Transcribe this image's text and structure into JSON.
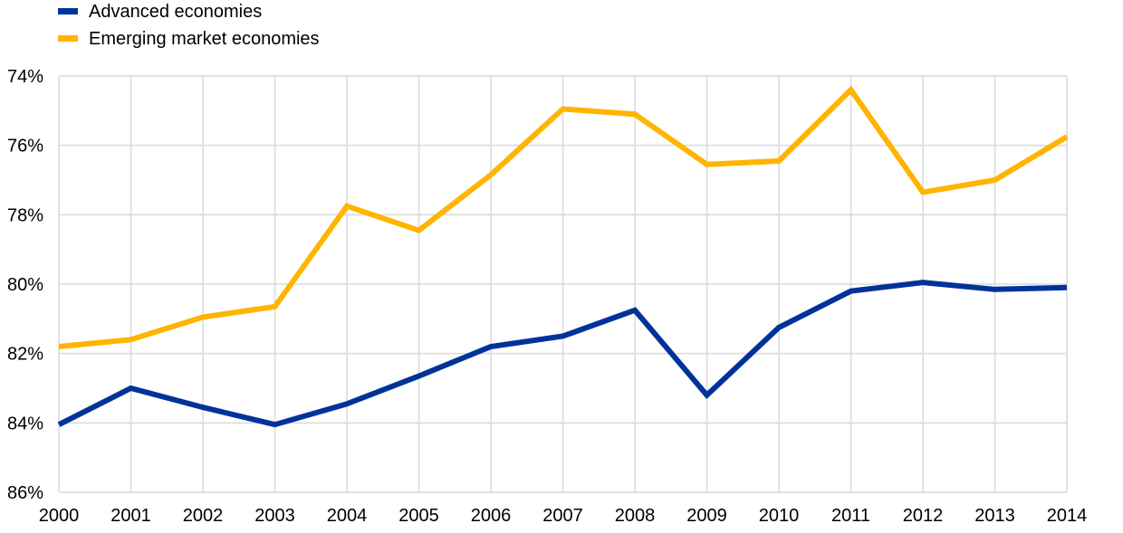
{
  "chart_data": {
    "type": "line",
    "title": "",
    "xlabel": "",
    "ylabel": "",
    "x": [
      "2000",
      "2001",
      "2002",
      "2003",
      "2004",
      "2005",
      "2006",
      "2007",
      "2008",
      "2009",
      "2010",
      "2011",
      "2012",
      "2013",
      "2014"
    ],
    "y_ticks": [
      {
        "value": 74,
        "label": "74%"
      },
      {
        "value": 76,
        "label": "76%"
      },
      {
        "value": 78,
        "label": "78%"
      },
      {
        "value": 80,
        "label": "80%"
      },
      {
        "value": 82,
        "label": "82%"
      },
      {
        "value": 84,
        "label": "84%"
      },
      {
        "value": 86,
        "label": "86%"
      }
    ],
    "ylim": [
      74,
      86
    ],
    "y_inverted": true,
    "grid": true,
    "legend_position": "top-left",
    "series": [
      {
        "name": "Advanced economies",
        "color": "#003399",
        "values": [
          84.05,
          83.0,
          83.55,
          84.05,
          83.45,
          82.65,
          81.8,
          81.5,
          80.75,
          83.2,
          81.25,
          80.2,
          79.95,
          80.15,
          80.1
        ]
      },
      {
        "name": "Emerging market economies",
        "color": "#FFB400",
        "values": [
          81.8,
          81.6,
          80.95,
          80.65,
          77.75,
          78.45,
          76.85,
          74.95,
          75.1,
          76.55,
          76.45,
          74.4,
          77.35,
          77.0,
          75.75
        ]
      }
    ]
  }
}
